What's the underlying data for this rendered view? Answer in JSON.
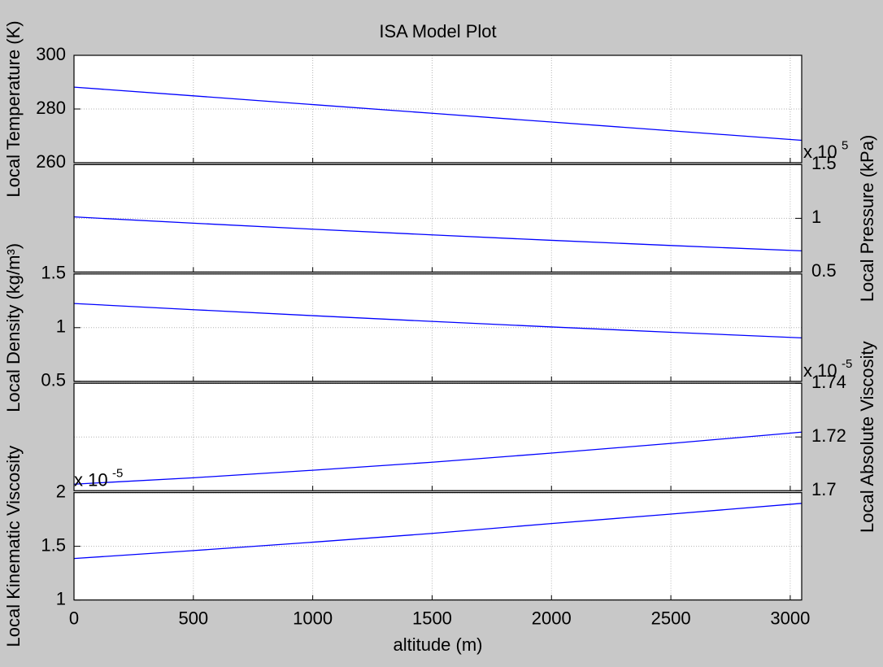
{
  "chart_data": [
    {
      "type": "line",
      "title": "ISA Model Plot",
      "ylabel": "Local Temperature (K)",
      "yaxis": "left",
      "x": [
        0,
        500,
        1000,
        1500,
        2000,
        2500,
        3048
      ],
      "series": [
        {
          "color": "#0000ff",
          "values": [
            288.15,
            284.9,
            281.65,
            278.4,
            275.15,
            271.9,
            268.34
          ]
        }
      ],
      "ylim": [
        260,
        300
      ],
      "yticks": [
        260,
        280,
        300
      ],
      "grid": true
    },
    {
      "type": "line",
      "ylabel": "Local Pressure (kPa)",
      "yaxis": "right",
      "multiplier": {
        "base": "x 10",
        "exponent": "5"
      },
      "x": [
        0,
        500,
        1000,
        1500,
        2000,
        2500,
        3048
      ],
      "series": [
        {
          "color": "#0000ff",
          "values": [
            1.01325,
            0.9546,
            0.8988,
            0.8456,
            0.795,
            0.7469,
            0.697
          ]
        }
      ],
      "ylim": [
        0.5,
        1.5
      ],
      "yticks": [
        0.5,
        1,
        1.5
      ],
      "grid": true
    },
    {
      "type": "line",
      "ylabel": "Local Density (kg/m³)",
      "yaxis": "left",
      "x": [
        0,
        500,
        1000,
        1500,
        2000,
        2500,
        3048
      ],
      "series": [
        {
          "color": "#0000ff",
          "values": [
            1.225,
            1.1673,
            1.1117,
            1.0581,
            1.0066,
            0.957,
            0.9046
          ]
        }
      ],
      "ylim": [
        0.5,
        1.5
      ],
      "yticks": [
        0.5,
        1,
        1.5
      ],
      "grid": true
    },
    {
      "type": "line",
      "ylabel": "Local Absolute Viscosity",
      "yaxis": "right",
      "multiplier": {
        "base": "x 10",
        "exponent": "-5"
      },
      "x": [
        0,
        500,
        1000,
        1500,
        2000,
        2500,
        3048
      ],
      "series": [
        {
          "color": "#0000ff",
          "values": [
            1.7024,
            1.7048,
            1.7076,
            1.7106,
            1.714,
            1.7176,
            1.7218
          ]
        }
      ],
      "ylim": [
        1.7,
        1.74
      ],
      "yticks": [
        1.7,
        1.72,
        1.74
      ],
      "grid": true
    },
    {
      "type": "line",
      "ylabel": "Local Kinematic Viscosity",
      "xlabel": "altitude (m)",
      "yaxis": "left",
      "multiplier": {
        "base": "x 10",
        "exponent": "-5"
      },
      "x": [
        0,
        500,
        1000,
        1500,
        2000,
        2500,
        3048
      ],
      "series": [
        {
          "color": "#0000ff",
          "values": [
            1.386,
            1.46,
            1.538,
            1.62,
            1.712,
            1.8,
            1.9
          ]
        }
      ],
      "xlim": [
        0,
        3048
      ],
      "xticks": [
        0,
        500,
        1000,
        1500,
        2000,
        2500,
        3000
      ],
      "ylim": [
        1,
        2
      ],
      "yticks": [
        1,
        1.5,
        2
      ],
      "grid": true
    }
  ]
}
